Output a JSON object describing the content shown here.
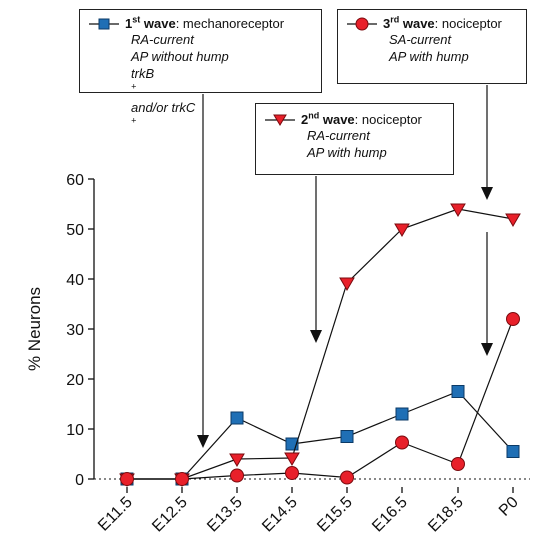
{
  "chart_data": {
    "type": "line",
    "categories": [
      "E11.5",
      "E12.5",
      "E13.5",
      "E14.5",
      "E15.5",
      "E16.5",
      "E18.5",
      "P0"
    ],
    "ylabel": "% Neurons",
    "ylim": [
      0,
      60
    ],
    "yticks": [
      0,
      10,
      20,
      30,
      40,
      50,
      60
    ],
    "zero_line": "dotted",
    "series": [
      {
        "key": "wave1",
        "marker": "square",
        "color": "#1f6fb5",
        "values": [
          0,
          0,
          12.2,
          7,
          8.5,
          13,
          17.5,
          5.5
        ]
      },
      {
        "key": "wave2",
        "marker": "triangle-down",
        "color": "#e8202a",
        "values": [
          0,
          0,
          4,
          4.2,
          39.2,
          50,
          54,
          52
        ]
      },
      {
        "key": "wave3",
        "marker": "circle",
        "color": "#e8202a",
        "values": [
          0,
          0,
          0.7,
          1.2,
          0.3,
          7.3,
          3,
          32
        ]
      }
    ]
  },
  "legend": {
    "wave1": {
      "ordinal": "1",
      "sup": "st",
      "word": "wave",
      "type": ": mechanoreceptor",
      "line1": "RA-current",
      "line2": "AP without hump",
      "line3_a": "trkB",
      "line3_a_sup": "+",
      "line3_b": " and/or trkC",
      "line3_b_sup": "+"
    },
    "wave2": {
      "ordinal": "2",
      "sup": "nd",
      "word": "wave",
      "type": ": nociceptor",
      "line1": "RA-current",
      "line2": "AP with hump"
    },
    "wave3": {
      "ordinal": "3",
      "sup": "rd",
      "word": "wave",
      "type": ": nociceptor",
      "line1": "SA-current",
      "line2": "AP with hump"
    }
  }
}
